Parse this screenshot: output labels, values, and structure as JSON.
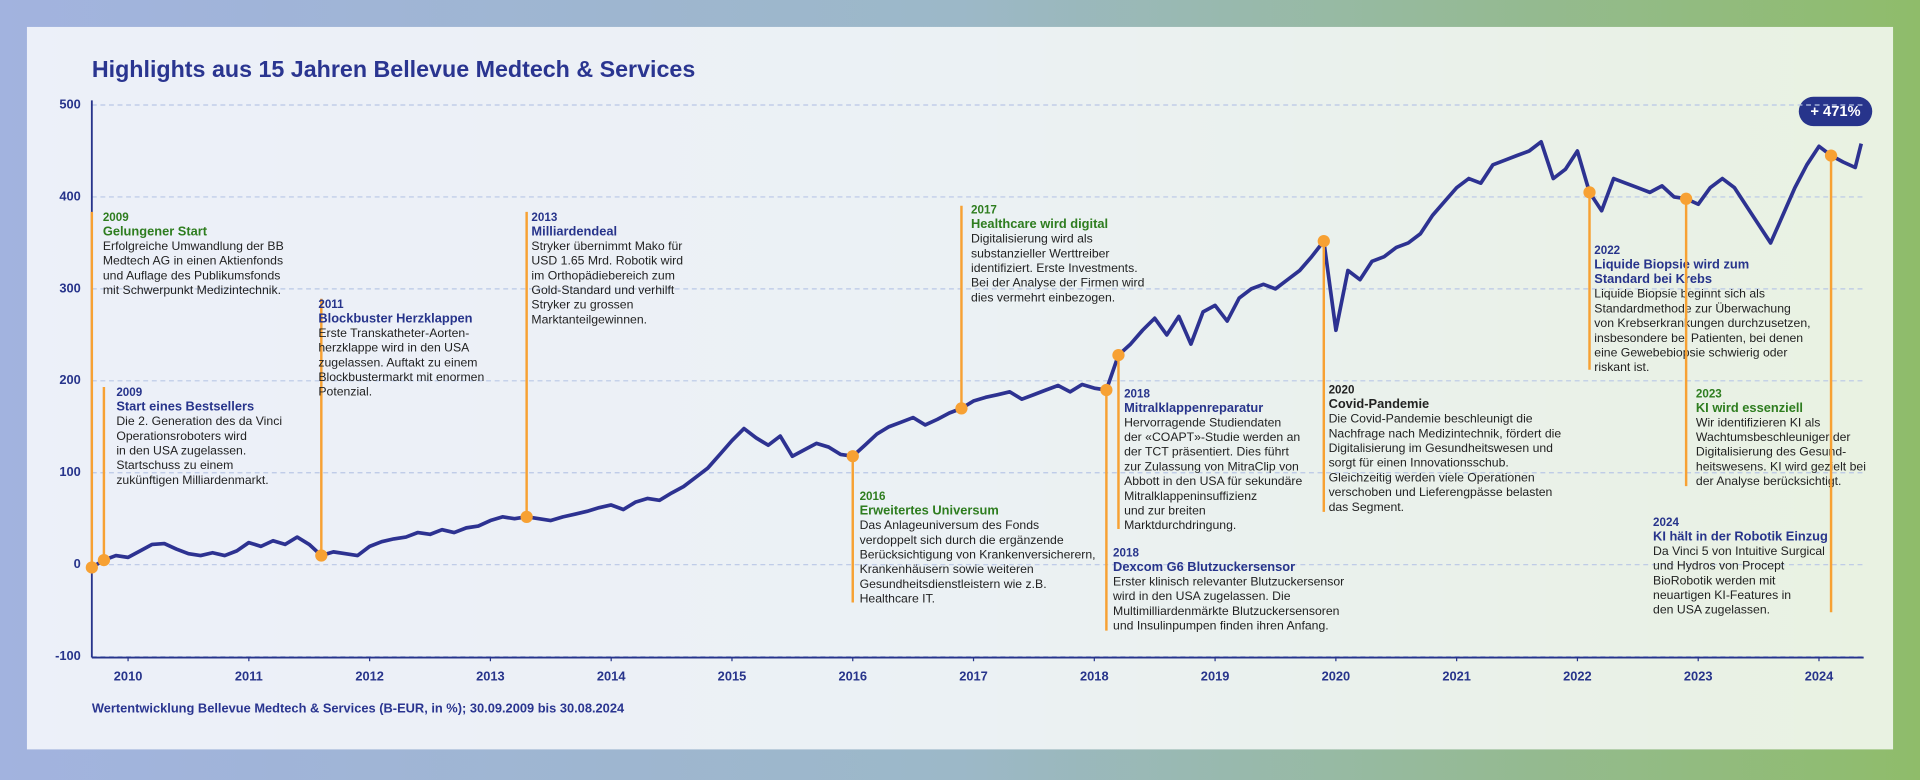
{
  "chart_data": {
    "type": "line",
    "title": "Highlights aus 15 Jahren Bellevue Medtech & Services",
    "caption": "Wertentwicklung Bellevue Medtech & Services (B-EUR, in %); 30.09.2009 bis 30.08.2024",
    "badge": "+ 471%",
    "color": "#2d3291",
    "marker_color": "#f7a133",
    "grid": true,
    "xlim": [
      2009.7,
      2024.37
    ],
    "xticks": [
      2010,
      2011,
      2012,
      2013,
      2014,
      2015,
      2016,
      2017,
      2018,
      2019,
      2020,
      2021,
      2022,
      2023,
      2024
    ],
    "ylim": [
      -101,
      505
    ],
    "yticks": [
      -100,
      0,
      100,
      200,
      300,
      400,
      500
    ],
    "x": [
      2009.7,
      2009.8,
      2009.9,
      2010.0,
      2010.1,
      2010.2,
      2010.3,
      2010.4,
      2010.5,
      2010.6,
      2010.7,
      2010.8,
      2010.9,
      2011.0,
      2011.1,
      2011.2,
      2011.3,
      2011.4,
      2011.5,
      2011.6,
      2011.7,
      2011.8,
      2011.9,
      2012.0,
      2012.1,
      2012.2,
      2012.3,
      2012.4,
      2012.5,
      2012.6,
      2012.7,
      2012.8,
      2012.9,
      2013.0,
      2013.1,
      2013.2,
      2013.3,
      2013.4,
      2013.5,
      2013.6,
      2013.7,
      2013.8,
      2013.9,
      2014.0,
      2014.1,
      2014.2,
      2014.3,
      2014.4,
      2014.5,
      2014.6,
      2014.7,
      2014.8,
      2014.9,
      2015.0,
      2015.1,
      2015.2,
      2015.3,
      2015.4,
      2015.5,
      2015.6,
      2015.7,
      2015.8,
      2015.9,
      2016.0,
      2016.1,
      2016.2,
      2016.3,
      2016.4,
      2016.5,
      2016.6,
      2016.7,
      2016.8,
      2016.9,
      2017.0,
      2017.1,
      2017.2,
      2017.3,
      2017.4,
      2017.5,
      2017.6,
      2017.7,
      2017.8,
      2017.9,
      2018.0,
      2018.1,
      2018.2,
      2018.3,
      2018.4,
      2018.5,
      2018.6,
      2018.7,
      2018.8,
      2018.9,
      2019.0,
      2019.1,
      2019.2,
      2019.3,
      2019.4,
      2019.5,
      2019.6,
      2019.7,
      2019.8,
      2019.9,
      2020.0,
      2020.1,
      2020.2,
      2020.3,
      2020.4,
      2020.5,
      2020.6,
      2020.7,
      2020.8,
      2020.9,
      2021.0,
      2021.1,
      2021.2,
      2021.3,
      2021.4,
      2021.5,
      2021.6,
      2021.7,
      2021.8,
      2021.9,
      2022.0,
      2022.1,
      2022.2,
      2022.3,
      2022.4,
      2022.5,
      2022.6,
      2022.7,
      2022.8,
      2022.9,
      2023.0,
      2023.1,
      2023.2,
      2023.3,
      2023.4,
      2023.5,
      2023.6,
      2023.7,
      2023.8,
      2023.9,
      2024.0,
      2024.1,
      2024.2,
      2024.3,
      2024.35
    ],
    "values": [
      -3,
      5,
      10,
      8,
      15,
      22,
      23,
      17,
      12,
      10,
      13,
      10,
      15,
      24,
      20,
      26,
      22,
      30,
      22,
      10,
      14,
      12,
      10,
      20,
      25,
      28,
      30,
      35,
      33,
      38,
      35,
      40,
      42,
      48,
      52,
      50,
      52,
      50,
      48,
      52,
      55,
      58,
      62,
      65,
      60,
      68,
      72,
      70,
      78,
      85,
      95,
      105,
      120,
      135,
      148,
      138,
      130,
      140,
      118,
      125,
      132,
      128,
      120,
      118,
      130,
      142,
      150,
      155,
      160,
      152,
      158,
      165,
      170,
      178,
      182,
      185,
      188,
      180,
      185,
      190,
      195,
      188,
      196,
      192,
      190,
      228,
      240,
      255,
      268,
      250,
      270,
      240,
      275,
      282,
      265,
      290,
      300,
      305,
      300,
      310,
      320,
      335,
      352,
      255,
      320,
      310,
      330,
      335,
      345,
      350,
      360,
      380,
      395,
      410,
      420,
      415,
      435,
      440,
      445,
      450,
      460,
      420,
      430,
      450,
      405,
      385,
      420,
      415,
      410,
      405,
      412,
      400,
      398,
      392,
      410,
      420,
      410,
      390,
      370,
      350,
      380,
      410,
      435,
      455,
      445,
      438,
      432,
      458
    ],
    "events": [
      {
        "x": 2009.7,
        "value": -3,
        "year": "2009",
        "color": "#2e7d1f",
        "heading": [
          "Gelungener Start"
        ],
        "body": [
          "Erfolgreiche Umwandlung der BB",
          "Medtech AG in einen Aktienfonds",
          "und Auflage des Publikumsfonds",
          "mit Schwerpunkt Medizintechnik."
        ]
      },
      {
        "x": 2009.8,
        "value": 5,
        "year": "2009",
        "color": "#27348b",
        "heading": [
          "Start eines Bestsellers"
        ],
        "body": [
          "Die 2. Generation des da Vinci",
          "Operationsroboters wird",
          "in den USA zugelassen.",
          "Startschuss zu einem",
          "zukünftigen Milliardenmarkt."
        ]
      },
      {
        "x": 2011.6,
        "value": 10,
        "year": "2011",
        "color": "#27348b",
        "heading": [
          "Blockbuster Herzklappen"
        ],
        "body": [
          "Erste Transkatheter-Aorten-",
          "herzklappe wird in den USA",
          "zugelassen. Auftakt zu einem",
          "Blockbustermarkt mit enormen",
          "Potenzial."
        ]
      },
      {
        "x": 2013.3,
        "value": 52,
        "year": "2013",
        "color": "#27348b",
        "heading": [
          "Milliardendeal"
        ],
        "body": [
          "Stryker übernimmt Mako für",
          "USD 1.65 Mrd. Robotik wird",
          "im Orthopädiebereich zum",
          "Gold-Standard und verhilft",
          "Stryker zu grossen",
          "Marktanteilgewinnen."
        ]
      },
      {
        "x": 2016.0,
        "value": 118,
        "year": "2016",
        "color": "#2e7d1f",
        "heading": [
          "Erweitertes  Universum"
        ],
        "body": [
          "Das Anlageuniversum des Fonds",
          "verdoppelt sich durch die ergänzende",
          "Berücksichtigung von Krankenversicherern,",
          "Krankenhäusern sowie weiteren",
          "Gesundheitsdienstleistern wie z.B.",
          "Healthcare IT."
        ]
      },
      {
        "x": 2016.9,
        "value": 170,
        "year": "2017",
        "color": "#2e7d1f",
        "heading": [
          "Healthcare wird digital"
        ],
        "body": [
          "Digitalisierung wird als",
          "substanzieller Werttreiber",
          "identifiziert. Erste Investments.",
          "Bei der Analyse der Firmen wird",
          "dies vermehrt einbezogen."
        ]
      },
      {
        "x": 2018.2,
        "value": 228,
        "year": "2018",
        "color": "#27348b",
        "heading": [
          "Mitralklappenreparatur"
        ],
        "body": [
          "Hervorragende Studiendaten",
          "der «COAPT»-Studie werden an",
          "der TCT präsentiert. Dies führt",
          "zur Zulassung von MitraClip von",
          "Abbott in den USA für sekundäre",
          "Mitralklappeninsuffizienz",
          "und zur breiten",
          "Marktdurchdringung."
        ]
      },
      {
        "x": 2018.1,
        "value": 190,
        "year": "2018",
        "color": "#27348b",
        "heading": [
          "Dexcom G6 Blutzuckersensor"
        ],
        "body": [
          "Erster klinisch relevanter Blutzuckersensor",
          "wird in den USA zugelassen. Die",
          "Multimilliardenmärkte Blutzuckersensoren",
          "und Insulinpumpen finden ihren Anfang."
        ]
      },
      {
        "x": 2019.9,
        "value": 352,
        "year": "2020",
        "color": "#222222",
        "heading": [
          "Covid-Pandemie"
        ],
        "body": [
          "Die Covid-Pandemie beschleunigt die",
          "Nachfrage nach Medizintechnik, fördert die",
          "Digitalisierung im Gesundheitswesen und",
          "sorgt für einen Innovationsschub.",
          "Gleichzeitig werden viele Operationen",
          "verschoben und Lieferengpässe belasten",
          "das Segment."
        ]
      },
      {
        "x": 2022.1,
        "value": 405,
        "year": "2022",
        "color": "#27348b",
        "heading": [
          "Liquide Biopsie wird zum",
          "Standard bei Krebs"
        ],
        "body": [
          "Liquide Biopsie beginnt sich als",
          "Standardmethode zur Überwachung",
          "von Krebserkrankungen durchzusetzen,",
          "insbesondere bei Patienten, bei denen",
          "eine Gewebebiopsie schwierig oder",
          "riskant ist."
        ]
      },
      {
        "x": 2022.9,
        "value": 398,
        "year": "2023",
        "color": "#2e7d1f",
        "heading": [
          "KI wird essenziell"
        ],
        "body": [
          "Wir identifizieren KI als",
          "Wachtumsbeschleuniger der",
          "Digitalisierung des Gesund-",
          "heitswesens. KI wird gezielt bei",
          "der Analyse berücksichtigt."
        ]
      },
      {
        "x": 2024.1,
        "value": 445,
        "year": "2024",
        "color": "#27348b",
        "heading": [
          "KI hält in der Robotik Einzug"
        ],
        "body": [
          "Da Vinci 5 von Intuitive Surgical",
          "und Hydros von Procept",
          "BioRobotik werden mit",
          "neuartigen KI-Features in",
          "den USA zugelassen."
        ]
      }
    ]
  }
}
